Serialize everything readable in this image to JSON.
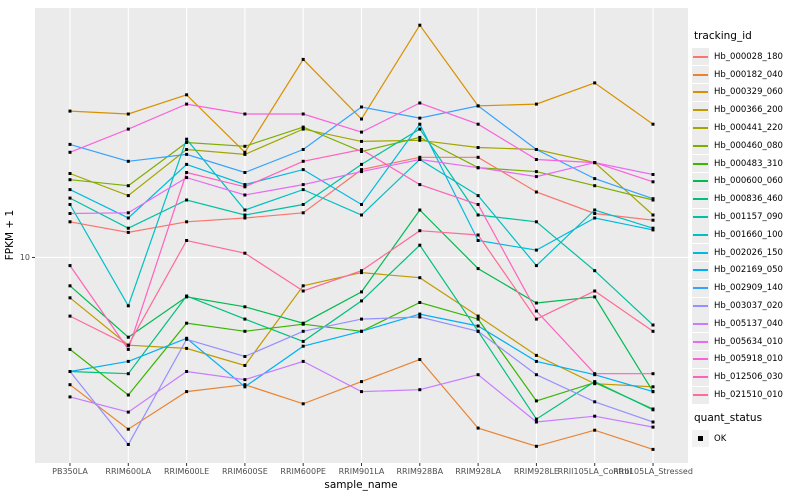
{
  "figure": {
    "background": "#FFFFFF",
    "panel_background": "#EBEBEB",
    "grid_color": "#FFFFFF",
    "axis_text_color": "#4D4D4D",
    "point_color": "#000000"
  },
  "axes": {
    "x_title": "sample_name",
    "y_title": "FPKM + 1",
    "y_tick_label": "10"
  },
  "legend": {
    "tracking_title": "tracking_id",
    "quant_title": "quant_status",
    "quant_items": [
      {
        "label": "OK"
      }
    ]
  },
  "chart_data": {
    "type": "line",
    "x_categories": [
      "PB350LA",
      "RRIM600LA",
      "RRIM600LE",
      "RRIM600SE",
      "RRIM600PE",
      "RRIM901LA",
      "RRIM928BA",
      "RRIM928LA",
      "RRIM928LE",
      "RRII105LA_Control",
      "RRII105LA_Stressed"
    ],
    "xlabel": "sample_name",
    "ylabel": "FPKM + 1",
    "yscale": "log10",
    "ylim": [
      1.5,
      100
    ],
    "y_ticks": [
      10
    ],
    "grid": "major",
    "legend_position": "right",
    "point_shape": "black-square",
    "series": [
      {
        "name": "Hb_000028_180",
        "color": "#F8766D",
        "values": [
          13.9,
          12.6,
          13.9,
          14.4,
          15.1,
          22.5,
          25.2,
          25.2,
          18.3,
          15.0,
          14.1
        ]
      },
      {
        "name": "Hb_000182_040",
        "color": "#EA8331",
        "values": [
          3.09,
          2.05,
          2.9,
          3.09,
          2.59,
          3.18,
          3.9,
          2.07,
          1.75,
          2.03,
          1.7
        ]
      },
      {
        "name": "Hb_000329_060",
        "color": "#D89000",
        "values": [
          38.6,
          37.6,
          44.9,
          26.4,
          62.2,
          35.9,
          85.3,
          40.5,
          41.2,
          50.1,
          34.2
        ]
      },
      {
        "name": "Hb_000366_200",
        "color": "#C09B00",
        "values": [
          6.89,
          4.45,
          4.32,
          3.69,
          7.7,
          8.7,
          8.3,
          5.82,
          4.05,
          3.12,
          3.03
        ]
      },
      {
        "name": "Hb_000441_220",
        "color": "#A3A500",
        "values": [
          21.7,
          17.7,
          27.1,
          25.9,
          32.7,
          29.2,
          29.5,
          27.6,
          27.1,
          24.0,
          14.8
        ]
      },
      {
        "name": "Hb_000460_080",
        "color": "#7CAE00",
        "values": [
          20.5,
          19.4,
          28.9,
          27.9,
          33.3,
          26.6,
          30.3,
          22.9,
          22.1,
          19.4,
          17.0
        ]
      },
      {
        "name": "Hb_000483_310",
        "color": "#39B600",
        "values": [
          4.28,
          2.81,
          5.45,
          5.06,
          5.4,
          5.06,
          6.6,
          5.66,
          2.66,
          3.15,
          2.47
        ]
      },
      {
        "name": "Hb_000600_060",
        "color": "#00BB4E",
        "values": [
          7.7,
          4.79,
          6.95,
          6.34,
          5.45,
          7.28,
          15.5,
          9.02,
          6.57,
          6.95,
          2.9
        ]
      },
      {
        "name": "Hb_000836_460",
        "color": "#00BF7D",
        "values": [
          3.49,
          3.42,
          7.01,
          5.66,
          4.61,
          6.7,
          11.2,
          5.06,
          2.25,
          3.18,
          2.45
        ]
      },
      {
        "name": "Hb_001157_090",
        "color": "#00C1A3",
        "values": [
          17.3,
          13.1,
          17.0,
          14.8,
          16.3,
          23.6,
          32.7,
          14.8,
          13.9,
          8.85,
          5.36
        ]
      },
      {
        "name": "Hb_001660_100",
        "color": "#00BFC4",
        "values": [
          16.3,
          6.4,
          29.8,
          15.5,
          18.7,
          14.8,
          24.7,
          17.7,
          9.28,
          15.5,
          13.1
        ]
      },
      {
        "name": "Hb_002026_150",
        "color": "#00BAE0",
        "values": [
          18.7,
          14.4,
          23.6,
          19.6,
          22.5,
          16.3,
          34.2,
          11.7,
          10.7,
          14.4,
          12.9
        ]
      },
      {
        "name": "Hb_002169_050",
        "color": "#00B0F6",
        "values": [
          3.49,
          3.83,
          4.74,
          3.03,
          4.41,
          5.06,
          5.93,
          5.31,
          3.83,
          3.39,
          2.9
        ]
      },
      {
        "name": "Hb_002909_140",
        "color": "#35A2FF",
        "values": [
          28.4,
          24.3,
          25.9,
          21.9,
          27.1,
          40.1,
          36.2,
          40.5,
          27.1,
          20.7,
          17.2
        ]
      },
      {
        "name": "Hb_003037_020",
        "color": "#9590FF",
        "values": [
          3.49,
          1.78,
          4.7,
          4.01,
          5.06,
          5.66,
          5.77,
          5.06,
          3.39,
          2.64,
          2.19
        ]
      },
      {
        "name": "Hb_005137_040",
        "color": "#C77CFF",
        "values": [
          2.76,
          2.4,
          3.49,
          3.24,
          3.83,
          2.9,
          2.95,
          3.39,
          2.19,
          2.31,
          2.09
        ]
      },
      {
        "name": "Hb_005634_010",
        "color": "#E76BF3",
        "values": [
          15.0,
          15.1,
          20.9,
          17.8,
          19.6,
          22.1,
          24.7,
          22.9,
          21.1,
          24.0,
          21.5
        ]
      },
      {
        "name": "Hb_005918_010",
        "color": "#FA62DB",
        "values": [
          26.4,
          32.7,
          41.2,
          37.6,
          37.6,
          31.8,
          41.6,
          34.2,
          24.7,
          24.0,
          20.1
        ]
      },
      {
        "name": "Hb_012506_030",
        "color": "#FF62BC",
        "values": [
          9.28,
          4.28,
          21.9,
          19.2,
          24.3,
          27.1,
          19.6,
          16.3,
          6.1,
          3.42,
          3.42
        ]
      },
      {
        "name": "Hb_021510_010",
        "color": "#FF6A98",
        "values": [
          5.82,
          4.45,
          11.7,
          10.4,
          7.34,
          8.85,
          12.8,
          12.3,
          5.66,
          7.34,
          5.06
        ]
      }
    ]
  }
}
